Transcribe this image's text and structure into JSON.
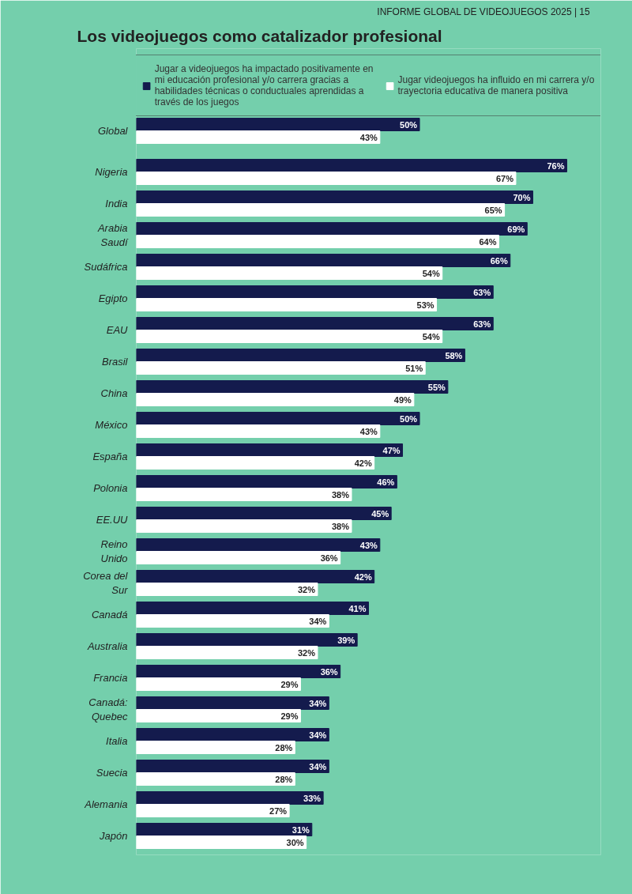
{
  "chart_data": {
    "type": "bar",
    "orientation": "horizontal",
    "title": "Los videojuegos como catalizador profesional",
    "annotations": [
      "INFORME GLOBAL DE VIDEOJUEGOS 2025",
      "|",
      "15"
    ],
    "categories": [
      "Global",
      "Nigeria",
      "India",
      "Arabia Saudí",
      "Sudáfrica",
      "Egipto",
      "EAU",
      "Brasil",
      "China",
      "México",
      "España",
      "Polonia",
      "EE.UU",
      "Reino Unido",
      "Corea del Sur",
      "Canadá",
      "Australia",
      "Francia",
      "Canadá: Quebec",
      "Italia",
      "Suecia",
      "Alemania",
      "Japón"
    ],
    "series": [
      {
        "name": "Jugar a videojuegos ha impactado positivamente en mi educación profesional y/o carrera gracias a  habilidades técnicas o conductuales aprendidas a través de los juegos",
        "color": "#141b4d",
        "values": [
          50,
          76,
          70,
          69,
          66,
          63,
          63,
          58,
          55,
          50,
          47,
          46,
          45,
          43,
          42,
          41,
          39,
          36,
          34,
          34,
          34,
          33,
          31
        ],
        "value_labels": [
          "50%",
          "76%",
          "70%",
          "69%",
          "66%",
          "63%",
          "63%",
          "58%",
          "55%",
          "50%",
          "47%",
          "46%",
          "45%",
          "43%",
          "42%",
          "41%",
          "39%",
          "36%",
          "34%",
          "34%",
          "34%",
          "33%",
          "31%"
        ]
      },
      {
        "name": "Jugar videojuegos ha influido en mi carrera y/o trayectoria educativa de manera positiva",
        "color": "#ffffff",
        "values": [
          43,
          67,
          65,
          64,
          54,
          53,
          54,
          51,
          49,
          43,
          42,
          38,
          38,
          36,
          32,
          34,
          32,
          29,
          29,
          28,
          28,
          27,
          30
        ],
        "value_labels": [
          "43%",
          "67%",
          "65%",
          "64%",
          "54%",
          "53%",
          "54%",
          "51%",
          "49%",
          "43%",
          "42%",
          "38%",
          "38%",
          "36%",
          "32%",
          "34%",
          "32%",
          "29%",
          "29%",
          "28%",
          "28%",
          "27%",
          "30%"
        ]
      }
    ],
    "xlim": [
      0,
      82
    ],
    "tick_labels": "y",
    "grid": false,
    "legend": "top"
  }
}
